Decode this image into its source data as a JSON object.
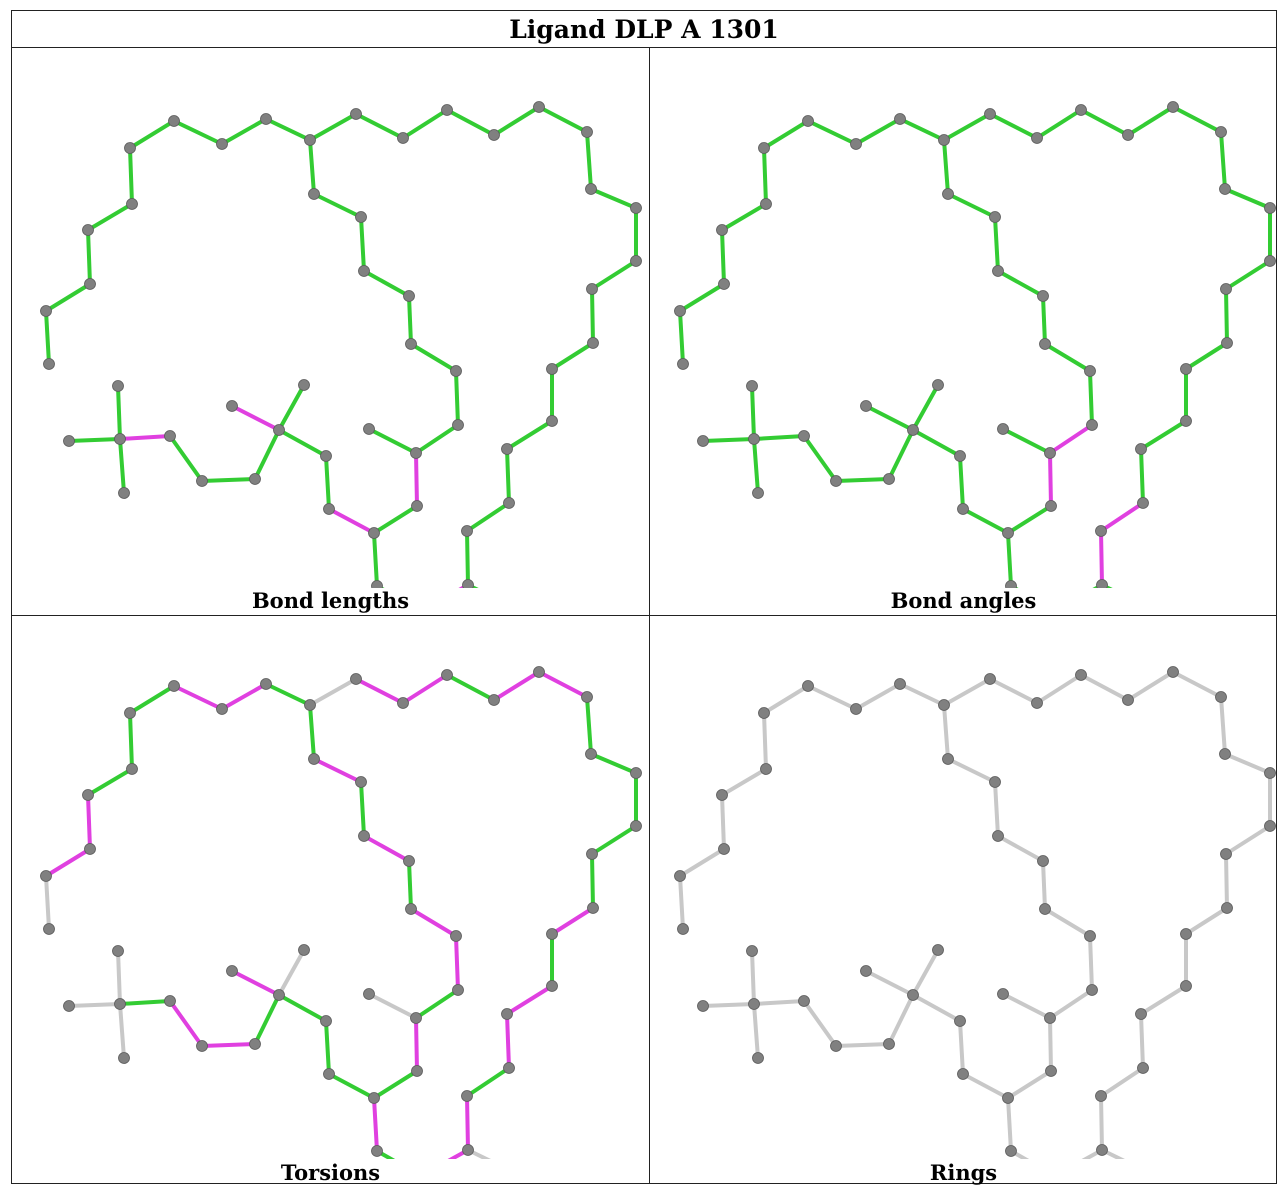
{
  "title": "Ligand DLP A 1301",
  "colors": {
    "ok": "#33cc33",
    "outlier": "#e040e0",
    "neutral": "#c8c8c8",
    "atom": "#808080"
  },
  "panels": [
    {
      "caption": "Bond lengths",
      "mode": "bonds"
    },
    {
      "caption": "Bond angles",
      "mode": "angles"
    },
    {
      "caption": "Torsions",
      "mode": "torsions"
    },
    {
      "caption": "Rings",
      "mode": "rings"
    }
  ]
}
